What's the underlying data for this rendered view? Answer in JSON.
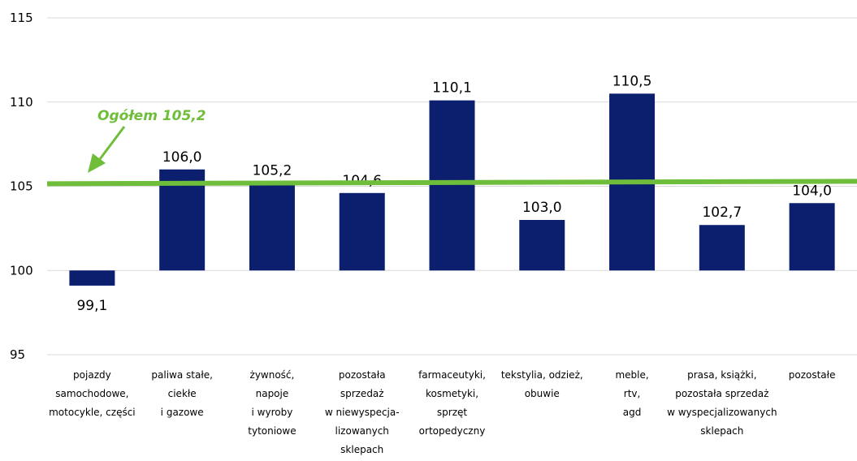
{
  "chart_data": {
    "type": "bar",
    "categories": [
      [
        "pojazdy",
        "samochodowe,",
        "motocykle, części"
      ],
      [
        "paliwa stałe,",
        "ciekłe",
        "i gazowe"
      ],
      [
        "żywność,",
        "napoje",
        "i wyroby",
        "tytoniowe"
      ],
      [
        "pozostała",
        "sprzedaż",
        "w niewyspecja-",
        "lizowanych",
        "sklepach"
      ],
      [
        "farmaceutyki,",
        "kosmetyki,",
        "sprzęt",
        "ortopedyczny"
      ],
      [
        "tekstylia, odzież,",
        "obuwie"
      ],
      [
        "meble,",
        "rtv,",
        "agd"
      ],
      [
        "prasa, książki,",
        "pozostała sprzedaż",
        "w wyspecjalizowanych",
        "sklepach"
      ],
      [
        "pozostałe"
      ]
    ],
    "values": [
      99.1,
      106.0,
      105.2,
      104.6,
      110.1,
      103.0,
      110.5,
      102.7,
      104.0
    ],
    "value_labels": [
      "99,1",
      "106,0",
      "105,2",
      "104,6",
      "110,1",
      "103,0",
      "110,5",
      "102,7",
      "104,0"
    ],
    "baseline": 100,
    "ylim": [
      95,
      115
    ],
    "yticks": [
      "95",
      "100",
      "105",
      "110",
      "115"
    ],
    "grid": true,
    "title": "",
    "xlabel": "",
    "ylabel": "",
    "reference_line": {
      "value": 105.2,
      "label": "Ogółem 105,2"
    },
    "colors": {
      "bar": "#0b1f6e",
      "reference_line": "#6fbe3b",
      "grid": "#d9d9d9"
    }
  }
}
